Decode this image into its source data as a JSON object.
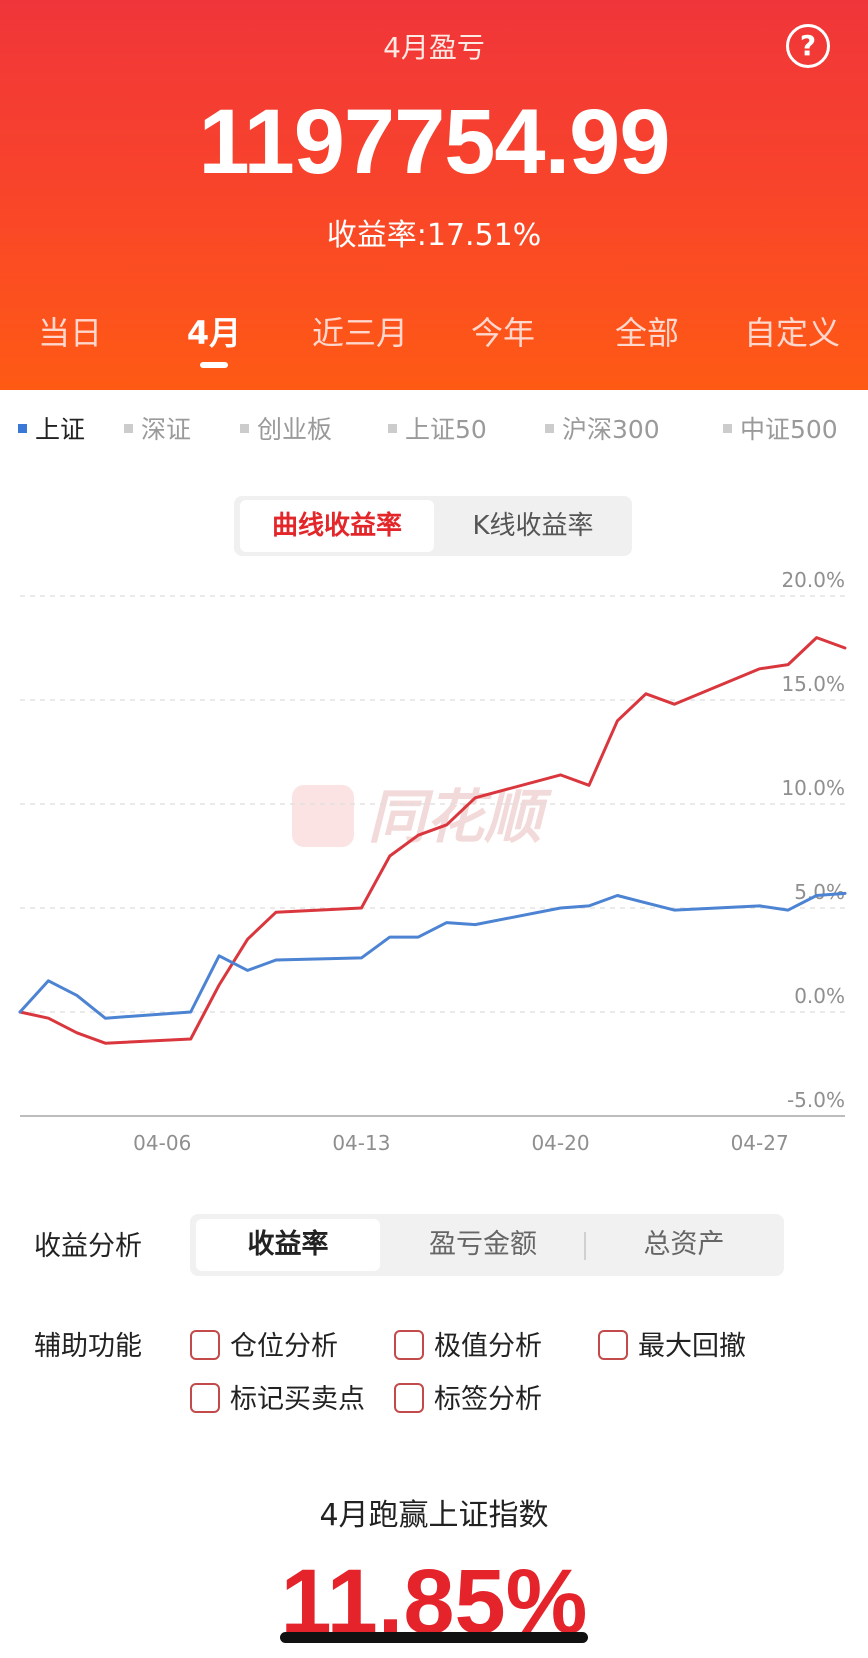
{
  "header": {
    "title": "4月盈亏",
    "amount": "1197754.99",
    "rate_text": "收益率:17.51%",
    "help_icon": "?"
  },
  "tabs": [
    "当日",
    "4月",
    "近三月",
    "今年",
    "全部",
    "自定义"
  ],
  "active_tab": "4月",
  "indices": [
    "上证",
    "深证",
    "创业板",
    "上证50",
    "沪深300",
    "中证500"
  ],
  "active_index": "上证",
  "chart_mode": {
    "options": [
      "曲线收益率",
      "K线收益率"
    ],
    "active": "曲线收益率"
  },
  "watermark": "同花顺",
  "chart_data": {
    "type": "line",
    "x_ticks": [
      "04-06",
      "04-13",
      "04-20",
      "04-27"
    ],
    "y_ticks": [
      "20.0%",
      "15.0%",
      "10.0%",
      "5.0%",
      "0.0%",
      "-5.0%"
    ],
    "ylim": [
      -5,
      20
    ],
    "grid": true,
    "series": [
      {
        "name": "",
        "color": "#d9373d",
        "points": [
          {
            "x": "04-01",
            "y": 0.0
          },
          {
            "x": "04-02",
            "y": -0.3
          },
          {
            "x": "04-03",
            "y": -1.0
          },
          {
            "x": "04-04",
            "y": -1.5
          },
          {
            "x": "04-07",
            "y": -1.3
          },
          {
            "x": "04-08",
            "y": 1.3
          },
          {
            "x": "04-09",
            "y": 3.5
          },
          {
            "x": "04-10",
            "y": 4.8
          },
          {
            "x": "04-13",
            "y": 5.0
          },
          {
            "x": "04-14",
            "y": 7.5
          },
          {
            "x": "04-15",
            "y": 8.5
          },
          {
            "x": "04-16",
            "y": 9.0
          },
          {
            "x": "04-17",
            "y": 10.3
          },
          {
            "x": "04-20",
            "y": 11.4
          },
          {
            "x": "04-21",
            "y": 10.9
          },
          {
            "x": "04-22",
            "y": 14.0
          },
          {
            "x": "04-23",
            "y": 15.3
          },
          {
            "x": "04-24",
            "y": 14.8
          },
          {
            "x": "04-27",
            "y": 16.5
          },
          {
            "x": "04-28",
            "y": 16.7
          },
          {
            "x": "04-29",
            "y": 18.0
          },
          {
            "x": "04-30",
            "y": 17.5
          }
        ]
      },
      {
        "name": "上证",
        "color": "#4c83d2",
        "points": [
          {
            "x": "04-01",
            "y": 0.0
          },
          {
            "x": "04-02",
            "y": 1.5
          },
          {
            "x": "04-03",
            "y": 0.8
          },
          {
            "x": "04-04",
            "y": -0.3
          },
          {
            "x": "04-07",
            "y": 0.0
          },
          {
            "x": "04-08",
            "y": 2.7
          },
          {
            "x": "04-09",
            "y": 2.0
          },
          {
            "x": "04-10",
            "y": 2.5
          },
          {
            "x": "04-13",
            "y": 2.6
          },
          {
            "x": "04-14",
            "y": 3.6
          },
          {
            "x": "04-15",
            "y": 3.6
          },
          {
            "x": "04-16",
            "y": 4.3
          },
          {
            "x": "04-17",
            "y": 4.2
          },
          {
            "x": "04-20",
            "y": 5.0
          },
          {
            "x": "04-21",
            "y": 5.1
          },
          {
            "x": "04-22",
            "y": 5.6
          },
          {
            "x": "04-24",
            "y": 4.9
          },
          {
            "x": "04-27",
            "y": 5.1
          },
          {
            "x": "04-28",
            "y": 4.9
          },
          {
            "x": "04-29",
            "y": 5.6
          },
          {
            "x": "04-30",
            "y": 5.7
          }
        ]
      }
    ]
  },
  "analysis": {
    "label": "收益分析",
    "options": [
      "收益率",
      "盈亏金额",
      "总资产"
    ],
    "active": "收益率"
  },
  "auxiliary": {
    "label": "辅助功能",
    "options": [
      "仓位分析",
      "极值分析",
      "最大回撤",
      "标记买卖点",
      "标签分析"
    ]
  },
  "beat": {
    "title": "4月跑赢上证指数",
    "value": "11.85%"
  }
}
